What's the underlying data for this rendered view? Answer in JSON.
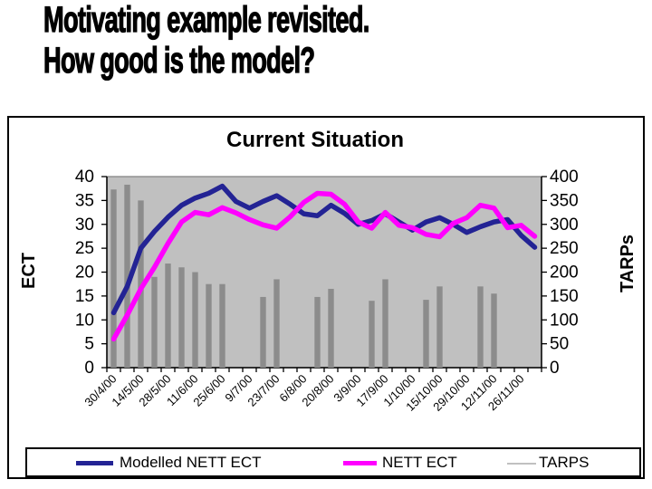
{
  "slide": {
    "title_line1": "Motivating example revisited.",
    "title_line2": "How good is the model?"
  },
  "chart_data": {
    "type": "combo-line-bar",
    "title": "Current Situation",
    "plot_bg": "#c0c0c0",
    "legend_position": "bottom",
    "n_points": 32,
    "x_label_every_nth_point": 2,
    "x_tick_labels": [
      "30/4/00",
      "14/5/00",
      "28/5/00",
      "11/6/00",
      "25/6/00",
      "9/7/00",
      "23/7/00",
      "6/8/00",
      "20/8/00",
      "3/9/00",
      "17/9/00",
      "1/10/00",
      "15/10/00",
      "29/10/00",
      "12/11/00",
      "26/11/00"
    ],
    "left_axis": {
      "label": "ECT",
      "min": 0,
      "max": 40,
      "step": 5,
      "tick_labels": [
        "0",
        "5",
        "10",
        "15",
        "20",
        "25",
        "30",
        "35",
        "40"
      ]
    },
    "right_axis": {
      "label": "TARPs",
      "min": 0,
      "max": 400,
      "step": 50,
      "tick_labels": [
        "0",
        "50",
        "100",
        "150",
        "200",
        "250",
        "300",
        "350",
        "400"
      ]
    },
    "series": [
      {
        "name": "Modelled NETT ECT",
        "type": "line",
        "axis": "left",
        "color": "#232394",
        "values": [
          11.5,
          17,
          25,
          28.5,
          31.5,
          34,
          35.5,
          36.5,
          38,
          34.8,
          33.4,
          34.8,
          36,
          34.2,
          32.2,
          31.8,
          34,
          32.3,
          30,
          30.8,
          32.2,
          30.5,
          28.8,
          30.5,
          31.4,
          30,
          28.3,
          29.5,
          30.5,
          31,
          27.7,
          25.2
        ]
      },
      {
        "name": "NETT ECT",
        "type": "line",
        "axis": "left",
        "color": "#ff00ff",
        "values": [
          6,
          11,
          16.5,
          21,
          26,
          30.5,
          32.5,
          32,
          33.5,
          32.4,
          31,
          29.9,
          29.2,
          31.6,
          34.6,
          36.5,
          36.3,
          34.2,
          30.5,
          29.2,
          32.5,
          29.8,
          29.3,
          27.9,
          27.4,
          30.2,
          31.4,
          34,
          33.4,
          29.3,
          29.8,
          27.5
        ]
      },
      {
        "name": "TARPS",
        "type": "bar",
        "axis": "right",
        "color": "#8c8c8c",
        "legend_color": "#c0c0c0",
        "values": [
          373,
          383,
          350,
          190,
          218,
          210,
          200,
          175,
          175,
          0,
          0,
          148,
          185,
          0,
          0,
          148,
          165,
          0,
          0,
          140,
          185,
          0,
          0,
          142,
          170,
          0,
          0,
          170,
          155,
          0,
          0,
          0
        ]
      }
    ]
  }
}
